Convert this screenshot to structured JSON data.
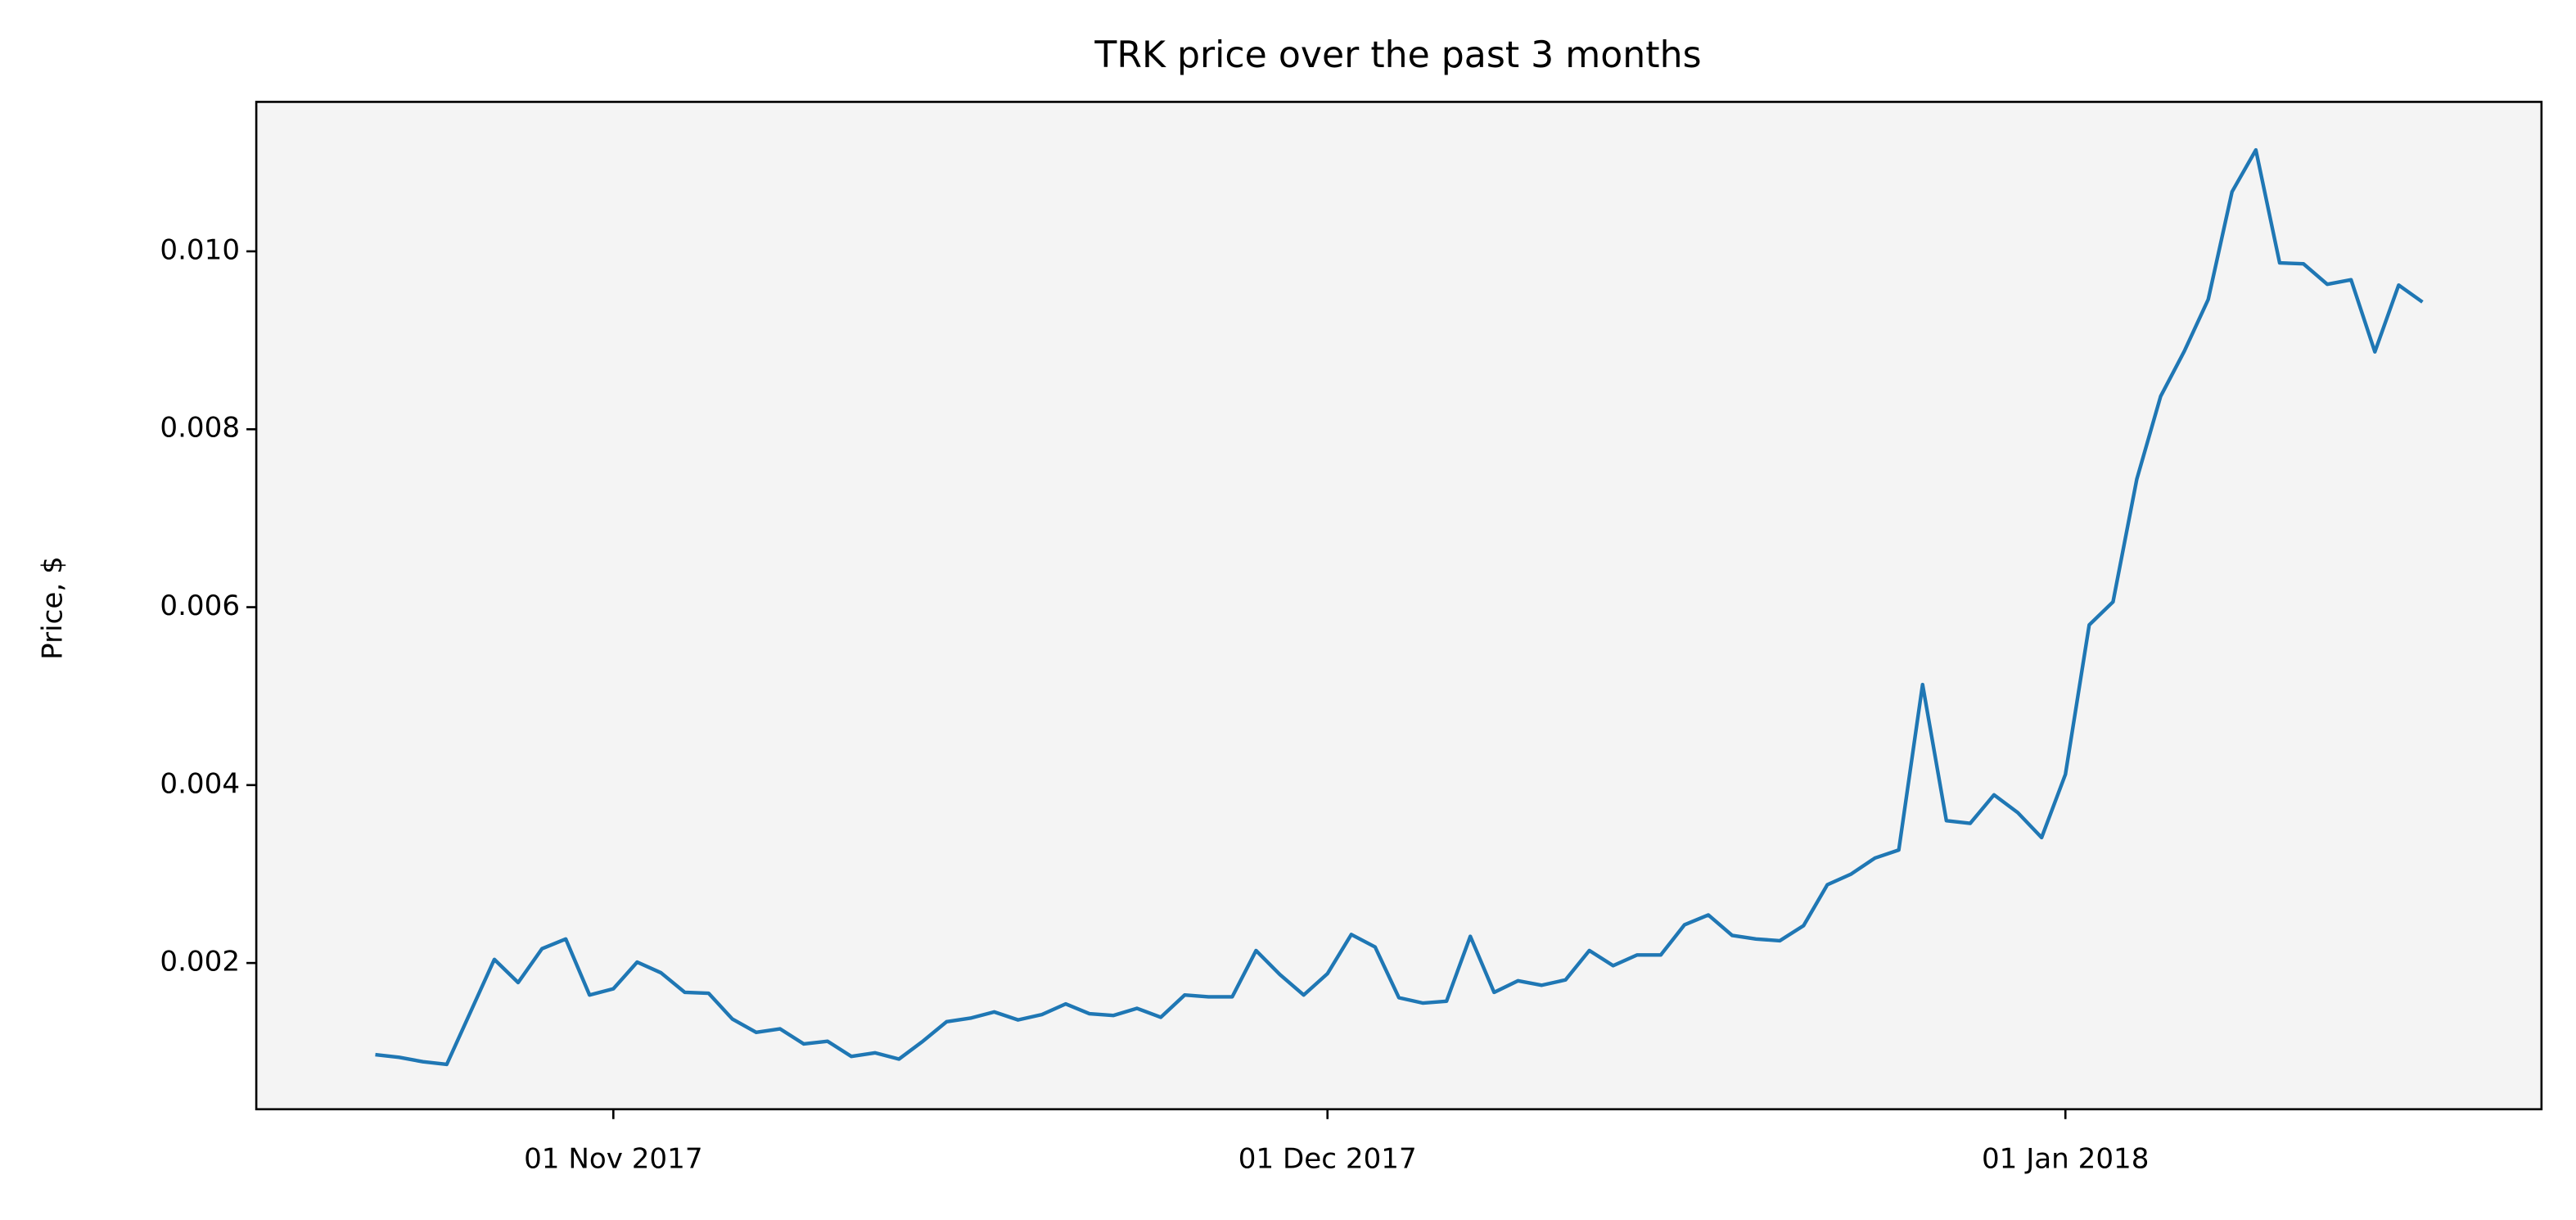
{
  "chart_data": {
    "type": "line",
    "title": "TRK price over the past 3 months",
    "y_label": "Price, $",
    "x": [
      "2017-10-22",
      "2017-10-23",
      "2017-10-24",
      "2017-10-25",
      "2017-10-26",
      "2017-10-27",
      "2017-10-28",
      "2017-10-29",
      "2017-10-30",
      "2017-10-31",
      "2017-11-01",
      "2017-11-02",
      "2017-11-03",
      "2017-11-04",
      "2017-11-05",
      "2017-11-06",
      "2017-11-07",
      "2017-11-08",
      "2017-11-09",
      "2017-11-10",
      "2017-11-11",
      "2017-11-12",
      "2017-11-13",
      "2017-11-14",
      "2017-11-15",
      "2017-11-16",
      "2017-11-17",
      "2017-11-18",
      "2017-11-19",
      "2017-11-20",
      "2017-11-21",
      "2017-11-22",
      "2017-11-23",
      "2017-11-24",
      "2017-11-25",
      "2017-11-26",
      "2017-11-27",
      "2017-11-28",
      "2017-11-29",
      "2017-11-30",
      "2017-12-01",
      "2017-12-02",
      "2017-12-03",
      "2017-12-04",
      "2017-12-05",
      "2017-12-06",
      "2017-12-07",
      "2017-12-08",
      "2017-12-09",
      "2017-12-10",
      "2017-12-11",
      "2017-12-12",
      "2017-12-13",
      "2017-12-14",
      "2017-12-15",
      "2017-12-16",
      "2017-12-17",
      "2017-12-18",
      "2017-12-19",
      "2017-12-20",
      "2017-12-21",
      "2017-12-22",
      "2017-12-23",
      "2017-12-24",
      "2017-12-25",
      "2017-12-26",
      "2017-12-27",
      "2017-12-28",
      "2017-12-29",
      "2017-12-30",
      "2017-12-31",
      "2018-01-01",
      "2018-01-02",
      "2018-01-03",
      "2018-01-04",
      "2018-01-05",
      "2018-01-06",
      "2018-01-07",
      "2018-01-08",
      "2018-01-09",
      "2018-01-10",
      "2018-01-11",
      "2018-01-12",
      "2018-01-13",
      "2018-01-14",
      "2018-01-15",
      "2018-01-16"
    ],
    "series": [
      {
        "color": "#1f77b4",
        "values": [
          0.00097,
          0.00094,
          0.00089,
          0.00086,
          0.00145,
          0.00204,
          0.00178,
          0.00216,
          0.00227,
          0.00164,
          0.00171,
          0.00201,
          0.00189,
          0.00167,
          0.00166,
          0.00137,
          0.00122,
          0.00126,
          0.00109,
          0.00112,
          0.00095,
          0.00099,
          0.00092,
          0.00112,
          0.00134,
          0.00138,
          0.00145,
          0.00136,
          0.00142,
          0.00154,
          0.00143,
          0.00141,
          0.00149,
          0.00139,
          0.00164,
          0.00162,
          0.00162,
          0.00214,
          0.00187,
          0.00164,
          0.00188,
          0.00232,
          0.00218,
          0.00161,
          0.00155,
          0.00157,
          0.0023,
          0.00167,
          0.0018,
          0.00175,
          0.00181,
          0.00214,
          0.00197,
          0.00209,
          0.00209,
          0.00243,
          0.00254,
          0.00231,
          0.00227,
          0.00225,
          0.00242,
          0.00288,
          0.003,
          0.00318,
          0.00327,
          0.00513,
          0.0036,
          0.00357,
          0.00389,
          0.00369,
          0.00341,
          0.00412,
          0.0058,
          0.00606,
          0.00744,
          0.00837,
          0.00888,
          0.00946,
          0.01067,
          0.01114,
          0.00987,
          0.00986,
          0.00963,
          0.00968,
          0.00887,
          0.00962,
          0.00943
        ]
      }
    ],
    "xlim": [
      "2017-10-17",
      "2018-01-21"
    ],
    "xticks": [
      {
        "value": "2017-11-01",
        "label": "01 Nov 2017"
      },
      {
        "value": "2017-12-01",
        "label": "01 Dec 2017"
      },
      {
        "value": "2018-01-01",
        "label": "01 Jan 2018"
      }
    ],
    "ylim": [
      0.000356,
      0.01168
    ],
    "yticks": [
      0.002,
      0.004,
      0.006,
      0.008,
      {
        "value": 0.01,
        "label": "0.010"
      }
    ],
    "background": "#f4f4f4"
  }
}
